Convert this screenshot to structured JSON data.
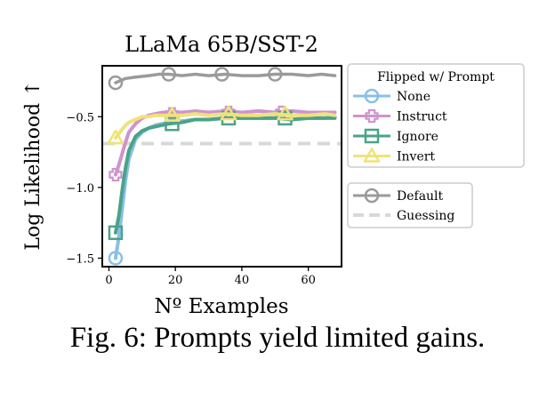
{
  "chart_data": {
    "type": "line",
    "title": "LLaMa 65B/SST-2",
    "xlabel": "Nº Examples",
    "ylabel": "Log Likelihood ↑",
    "xlim": [
      -2,
      70
    ],
    "ylim": [
      -1.56,
      -0.14
    ],
    "xticks": [
      0,
      20,
      40,
      60
    ],
    "xtick_labels": [
      "0",
      "20",
      "40",
      "60"
    ],
    "yticks": [
      -1.5,
      -1.0,
      -0.5
    ],
    "ytick_labels": [
      "−1.5",
      "−1.0",
      "−0.5"
    ],
    "grid": false,
    "legend_title": "Flipped w/ Prompt",
    "legend_position": "right",
    "series": [
      {
        "name": "Default",
        "legend_group": 2,
        "color": "#9a9a9a",
        "marker": "circle",
        "style": "solid",
        "x": [
          2,
          5,
          8,
          12,
          15,
          18,
          22,
          26,
          30,
          35,
          40,
          45,
          50,
          55,
          60,
          64,
          68
        ],
        "y": [
          -0.26,
          -0.23,
          -0.22,
          -0.21,
          -0.2,
          -0.2,
          -0.21,
          -0.2,
          -0.21,
          -0.2,
          -0.21,
          -0.21,
          -0.2,
          -0.2,
          -0.21,
          -0.2,
          -0.21
        ],
        "marker_x": [
          2,
          18,
          34,
          50
        ],
        "marker_y": [
          -0.26,
          -0.2,
          -0.2,
          -0.2
        ]
      },
      {
        "name": "Guessing",
        "legend_group": 2,
        "color": "#d8d8d8",
        "marker": "none",
        "style": "dashed",
        "x": [
          -2,
          70
        ],
        "y": [
          -0.69,
          -0.69
        ]
      },
      {
        "name": "None",
        "legend_group": 1,
        "color": "#88c0e6",
        "marker": "circle",
        "style": "solid",
        "x": [
          2,
          3,
          4,
          5,
          6,
          8,
          10,
          12,
          14,
          16,
          18,
          22,
          26,
          30,
          35,
          40,
          45,
          50,
          55,
          60,
          65,
          68
        ],
        "y": [
          -1.5,
          -1.35,
          -1.15,
          -0.95,
          -0.8,
          -0.66,
          -0.61,
          -0.58,
          -0.56,
          -0.55,
          -0.54,
          -0.53,
          -0.52,
          -0.52,
          -0.51,
          -0.51,
          -0.51,
          -0.51,
          -0.52,
          -0.51,
          -0.51,
          -0.5
        ],
        "marker_x": [
          2
        ],
        "marker_y": [
          -1.5
        ]
      },
      {
        "name": "Instruct",
        "legend_group": 1,
        "color": "#cf93cf",
        "marker": "plus",
        "style": "solid",
        "x": [
          2,
          3,
          4,
          5,
          6,
          8,
          10,
          12,
          14,
          16,
          18,
          22,
          26,
          30,
          35,
          40,
          45,
          50,
          55,
          60,
          65,
          68
        ],
        "y": [
          -0.91,
          -0.84,
          -0.76,
          -0.68,
          -0.61,
          -0.55,
          -0.51,
          -0.49,
          -0.48,
          -0.47,
          -0.47,
          -0.47,
          -0.46,
          -0.47,
          -0.46,
          -0.47,
          -0.46,
          -0.47,
          -0.46,
          -0.47,
          -0.47,
          -0.47
        ],
        "marker_x": [
          2,
          19,
          36,
          52
        ],
        "marker_y": [
          -0.91,
          -0.48,
          -0.47,
          -0.47
        ]
      },
      {
        "name": "Ignore",
        "legend_group": 1,
        "color": "#4aa388",
        "marker": "square",
        "style": "solid",
        "x": [
          2,
          3,
          4,
          5,
          6,
          8,
          10,
          12,
          14,
          16,
          18,
          22,
          26,
          30,
          35,
          40,
          45,
          50,
          55,
          60,
          65,
          68
        ],
        "y": [
          -1.32,
          -1.2,
          -1.02,
          -0.86,
          -0.74,
          -0.64,
          -0.6,
          -0.58,
          -0.57,
          -0.56,
          -0.55,
          -0.54,
          -0.52,
          -0.52,
          -0.51,
          -0.51,
          -0.51,
          -0.51,
          -0.52,
          -0.51,
          -0.51,
          -0.51
        ],
        "marker_x": [
          2,
          19,
          36,
          53
        ],
        "marker_y": [
          -1.32,
          -0.55,
          -0.51,
          -0.51
        ]
      },
      {
        "name": "Invert",
        "legend_group": 1,
        "color": "#f0e27a",
        "marker": "triangle",
        "style": "solid",
        "x": [
          2,
          3,
          4,
          5,
          6,
          8,
          10,
          12,
          14,
          16,
          18,
          22,
          26,
          30,
          35,
          40,
          45,
          50,
          55,
          60,
          65,
          68
        ],
        "y": [
          -0.65,
          -0.62,
          -0.59,
          -0.56,
          -0.54,
          -0.52,
          -0.5,
          -0.5,
          -0.49,
          -0.49,
          -0.49,
          -0.49,
          -0.48,
          -0.49,
          -0.48,
          -0.49,
          -0.49,
          -0.48,
          -0.49,
          -0.49,
          -0.48,
          -0.49
        ],
        "marker_x": [
          2,
          19,
          36,
          53
        ],
        "marker_y": [
          -0.65,
          -0.49,
          -0.48,
          -0.48
        ]
      }
    ]
  },
  "caption": "Fig. 6: Prompts yield limited gains."
}
